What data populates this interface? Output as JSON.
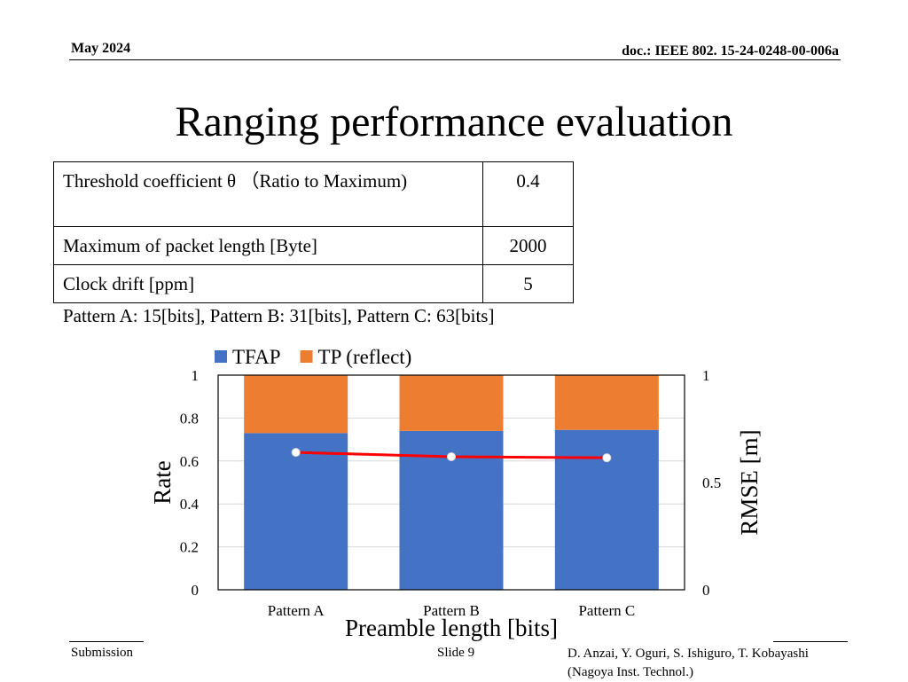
{
  "header": {
    "date": "May 2024",
    "doc": "doc.: IEEE 802. 15-24-0248-00-006a"
  },
  "slide_title": "Ranging performance evaluation",
  "params_table": [
    {
      "label": "Threshold coefficient θ （Ratio to Maximum)",
      "value": "0.4"
    },
    {
      "label": "Maximum of packet length [Byte]",
      "value": "2000"
    },
    {
      "label": "Clock drift [ppm]",
      "value": "5"
    }
  ],
  "pattern_note": "Pattern A: 15[bits], Pattern B: 31[bits], Pattern C: 63[bits]",
  "chart_data": {
    "type": "bar",
    "stacked": true,
    "categories": [
      "Pattern A",
      "Pattern B",
      "Pattern C"
    ],
    "series": [
      {
        "name": "TFAP",
        "values": [
          0.73,
          0.74,
          0.745
        ],
        "color": "#4472C4",
        "axis": "left"
      },
      {
        "name": "TP (reflect)",
        "values": [
          0.27,
          0.26,
          0.255
        ],
        "color": "#ED7D31",
        "axis": "left"
      },
      {
        "name": "",
        "type": "line",
        "values": [
          0.64,
          0.62,
          0.615
        ],
        "color": "#FF0000",
        "axis": "right"
      }
    ],
    "xlabel": "Preamble length [bits]",
    "ylabel": "Rate",
    "y2label": "RMSE [m]",
    "ylim": [
      0,
      1
    ],
    "y2lim": [
      0,
      1
    ],
    "yticks": [
      "0",
      "0.2",
      "0.4",
      "0.6",
      "0.8",
      "1"
    ],
    "y2ticks": [
      "0",
      "0.5",
      "1"
    ],
    "legend": "top-left",
    "grid": true
  },
  "footer": {
    "left": "Submission",
    "center": "Slide 9",
    "right_line1": "D. Anzai, Y. Oguri, S. Ishiguro,  T. Kobayashi",
    "right_line2": "(Nagoya Inst. Technol.)"
  }
}
